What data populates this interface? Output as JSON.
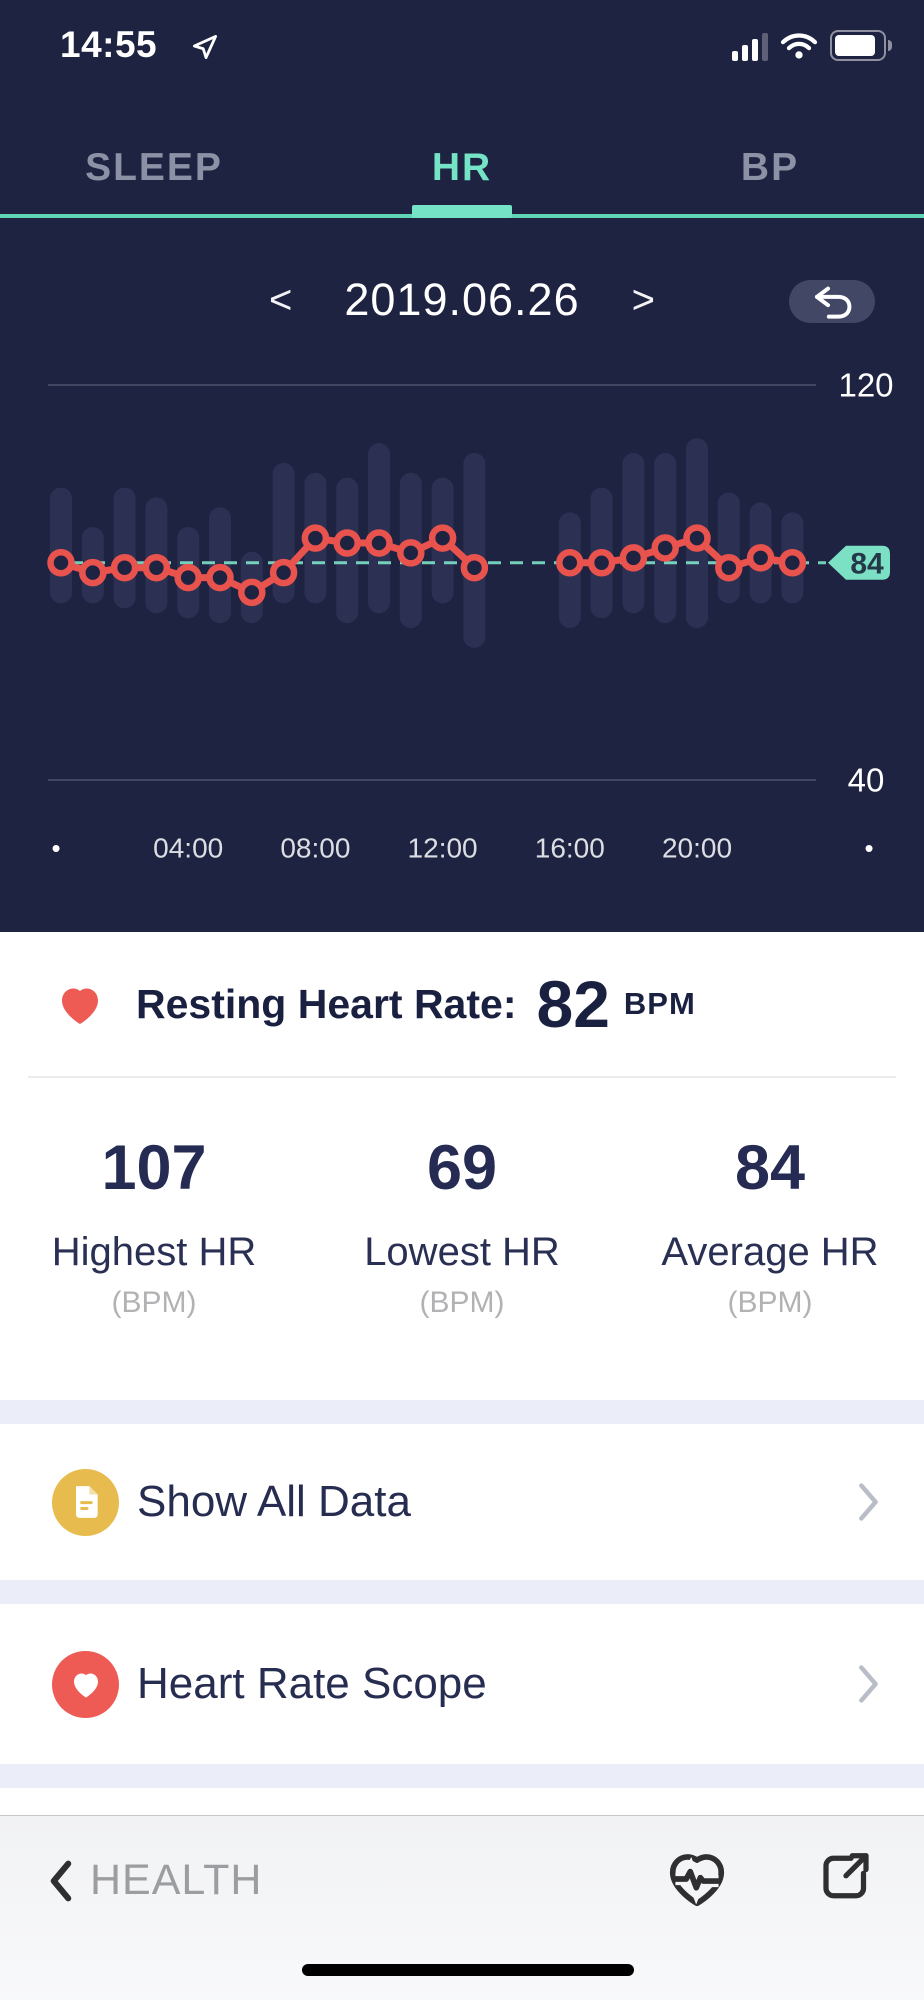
{
  "status_bar": {
    "time": "14:55"
  },
  "tab_bar": {
    "tabs": [
      {
        "label": "SLEEP"
      },
      {
        "label": "HR"
      },
      {
        "label": "BP"
      }
    ],
    "active_index": 1
  },
  "date_nav": {
    "prev_label": "<",
    "date": "2019.06.26",
    "next_label": ">"
  },
  "chart_data": {
    "type": "line",
    "title": "Hourly heart rate for 2019.06.26",
    "x_axis": {
      "tick_labels": [
        "04:00",
        "08:00",
        "12:00",
        "16:00",
        "20:00"
      ],
      "tick_hours": [
        4,
        8,
        12,
        16,
        20
      ],
      "edge_dot": "•",
      "range_hours": [
        0,
        24
      ]
    },
    "y_axis": {
      "min": 40,
      "max": 120,
      "gridline_values": [
        120,
        40
      ]
    },
    "average": {
      "value": 84,
      "label": "84"
    },
    "series": [
      {
        "name": "hourly_hr_line",
        "type": "line",
        "points": [
          [
            0,
            84
          ],
          [
            1,
            82
          ],
          [
            2,
            83
          ],
          [
            3,
            83
          ],
          [
            4,
            81
          ],
          [
            5,
            81
          ],
          [
            6,
            78
          ],
          [
            7,
            82
          ],
          [
            8,
            89
          ],
          [
            9,
            88
          ],
          [
            10,
            88
          ],
          [
            11,
            86
          ],
          [
            12,
            89
          ],
          [
            13,
            83
          ],
          [
            16,
            84
          ],
          [
            17,
            84
          ],
          [
            18,
            85
          ],
          [
            19,
            87
          ],
          [
            20,
            89
          ],
          [
            21,
            83
          ],
          [
            22,
            85
          ],
          [
            23,
            84
          ]
        ]
      },
      {
        "name": "hourly_hr_range",
        "type": "range",
        "ranges": [
          [
            0,
            78,
            97
          ],
          [
            1,
            78,
            89
          ],
          [
            2,
            77,
            97
          ],
          [
            3,
            76,
            95
          ],
          [
            4,
            75,
            89
          ],
          [
            5,
            74,
            93
          ],
          [
            6,
            74,
            84
          ],
          [
            7,
            78,
            102
          ],
          [
            8,
            78,
            100
          ],
          [
            9,
            74,
            99
          ],
          [
            10,
            76,
            106
          ],
          [
            11,
            73,
            100
          ],
          [
            12,
            78,
            99
          ],
          [
            13,
            69,
            104
          ],
          [
            16,
            73,
            92
          ],
          [
            17,
            75,
            97
          ],
          [
            18,
            76,
            104
          ],
          [
            19,
            74,
            104
          ],
          [
            20,
            73,
            107
          ],
          [
            21,
            78,
            96
          ],
          [
            22,
            78,
            94
          ],
          [
            23,
            78,
            92
          ]
        ]
      }
    ]
  },
  "resting_hr": {
    "label": "Resting Heart Rate:",
    "value": "82",
    "unit": "BPM"
  },
  "stats": [
    {
      "value": "107",
      "label": "Highest HR",
      "unit": "(BPM)"
    },
    {
      "value": "69",
      "label": "Lowest HR",
      "unit": "(BPM)"
    },
    {
      "value": "84",
      "label": "Average HR",
      "unit": "(BPM)"
    }
  ],
  "menu_rows": [
    {
      "label": "Show All Data",
      "icon": "document-icon"
    },
    {
      "label": "Heart Rate Scope",
      "icon": "heart-icon"
    }
  ],
  "bottom_bar": {
    "back_label": "HEALTH"
  },
  "colors": {
    "navy_bg": "#1F2342",
    "accent_teal": "#74E3C6",
    "tab_inactive": "#8D91A5",
    "hr_line_red": "#E8534D",
    "range_column": "#2C3053",
    "avg_dash": "#7DE2C8",
    "tag_bg": "#7CE0C4",
    "tag_text": "#25384A",
    "grid_line": "rgba(255,255,255,0.16)",
    "grid_label": "#FFFFFF",
    "x_tick_color": "rgba(255,255,255,0.85)",
    "section_sep": "#EBEEF8",
    "icon_yellow": "#E7BB4E",
    "icon_red": "#EE5B55",
    "text_navy": "#1A2040",
    "unit_gray": "#B2B2B5",
    "bottombar_icon": "#2F2F31"
  }
}
